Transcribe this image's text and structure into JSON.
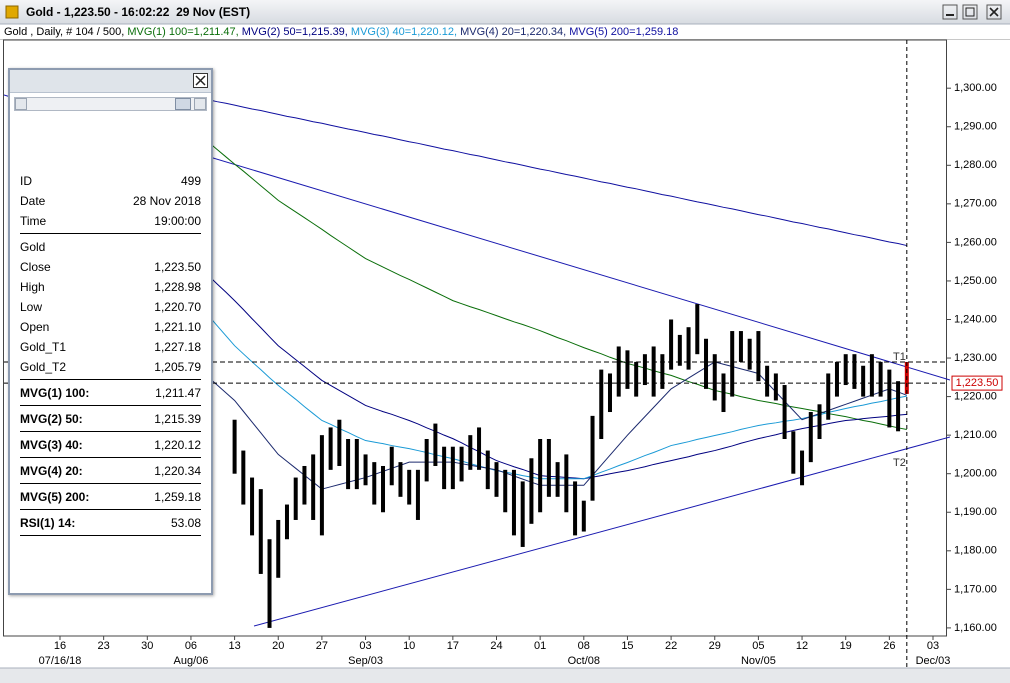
{
  "window": {
    "title": "Gold - 1,223.50 - 16:02:22  29 Nov (EST)"
  },
  "chart_data": {
    "type": "ohlc",
    "header": "Gold , Daily, # 104 / 500, ",
    "categories": [
      "16",
      null,
      null,
      null,
      null,
      "23",
      null,
      null,
      null,
      null,
      "30",
      null,
      null,
      null,
      null,
      "06",
      null,
      null,
      null,
      null,
      "13",
      null,
      null,
      null,
      null,
      "20",
      null,
      null,
      null,
      null,
      "27",
      null,
      null,
      null,
      null,
      "03",
      null,
      null,
      null,
      null,
      "10",
      null,
      null,
      null,
      null,
      "17",
      null,
      null,
      null,
      null,
      "24",
      null,
      null,
      null,
      null,
      "01",
      null,
      null,
      null,
      null,
      "08",
      null,
      null,
      null,
      null,
      "15",
      null,
      null,
      null,
      null,
      "22",
      null,
      null,
      null,
      null,
      "29",
      null,
      null,
      null,
      null,
      "05",
      null,
      null,
      null,
      null,
      "12",
      null,
      null,
      null,
      null,
      "19",
      null,
      null,
      null,
      null,
      "26",
      null,
      null,
      null,
      null,
      "03"
    ],
    "period_labels": [
      "07/16/18",
      null,
      null,
      null,
      null,
      null,
      null,
      null,
      null,
      null,
      null,
      null,
      null,
      null,
      null,
      "Aug/06",
      null,
      null,
      null,
      null,
      null,
      null,
      null,
      null,
      null,
      null,
      null,
      null,
      null,
      null,
      null,
      null,
      null,
      null,
      null,
      "Sep/03",
      null,
      null,
      null,
      null,
      null,
      null,
      null,
      null,
      null,
      null,
      null,
      null,
      null,
      null,
      null,
      null,
      null,
      null,
      null,
      null,
      null,
      null,
      null,
      null,
      "Oct/08",
      null,
      null,
      null,
      null,
      null,
      null,
      null,
      null,
      null,
      null,
      null,
      null,
      null,
      null,
      null,
      null,
      null,
      null,
      null,
      "Nov/05",
      null,
      null,
      null,
      null,
      null,
      null,
      null,
      null,
      null,
      null,
      null,
      null,
      null,
      null,
      null,
      null,
      null,
      null,
      null,
      "Dec/03"
    ],
    "bars": {
      "color": "#000000",
      "last_bar_color": "#cc0000",
      "high": [
        null,
        null,
        null,
        null,
        null,
        null,
        null,
        null,
        null,
        null,
        null,
        null,
        null,
        null,
        null,
        null,
        null,
        null,
        null,
        null,
        1214,
        1206,
        1199,
        1196,
        1183,
        1188,
        1192,
        1199,
        1202,
        1205,
        1210,
        1212,
        1214,
        1209,
        1209,
        1205,
        1203,
        1202,
        1207,
        1203,
        1201,
        1201,
        1209,
        1213,
        1207,
        1207,
        1207,
        1210,
        1212,
        1206,
        1203,
        1201,
        1201,
        1198,
        1204,
        1209,
        1209,
        1203,
        1205,
        1198,
        1193,
        1215,
        1227,
        1226,
        1233,
        1232,
        1229,
        1231,
        1233,
        1231,
        1240,
        1236,
        1238,
        1244,
        1235,
        1231,
        1226,
        1237,
        1237,
        1235,
        1237,
        1228,
        1226,
        1223,
        1211,
        1206,
        1216,
        1218,
        1226,
        1229,
        1231,
        1231,
        1228,
        1231,
        1229,
        1227,
        1224,
        1228.98,
        null,
        null,
        null
      ],
      "low": [
        null,
        null,
        null,
        null,
        null,
        null,
        null,
        null,
        null,
        null,
        null,
        null,
        null,
        null,
        null,
        null,
        null,
        null,
        null,
        null,
        1200,
        1192,
        1184,
        1174,
        1160,
        1173,
        1183,
        1188,
        1192,
        1188,
        1184,
        1201,
        1202,
        1196,
        1196,
        1197,
        1192,
        1190,
        1197,
        1194,
        1192,
        1188,
        1198,
        1202,
        1196,
        1196,
        1198,
        1201,
        1201,
        1196,
        1194,
        1190,
        1184,
        1181,
        1187,
        1190,
        1194,
        1194,
        1190,
        1184,
        1185,
        1193,
        1209,
        1216,
        1220,
        1222,
        1220,
        1223,
        1220,
        1222,
        1227,
        1228,
        1227,
        1231,
        1222,
        1219,
        1216,
        1220,
        1229,
        1227,
        1224,
        1220,
        1219,
        1209,
        1200,
        1197,
        1203,
        1209,
        1214,
        1220,
        1223,
        1222,
        1220,
        1220,
        1220,
        1212,
        1211,
        1220.7,
        null,
        null,
        null
      ]
    },
    "series": [
      {
        "name": "MVG(1) 100=1,211.47, ",
        "color": "#0a6e0a",
        "values": [
          null,
          null,
          null,
          null,
          null,
          null,
          null,
          null,
          null,
          null,
          null,
          null,
          null,
          null,
          null,
          null,
          null,
          1286.0,
          1284.1,
          1282.2,
          1280.3,
          1278.5,
          1276.6,
          1274.7,
          1272.8,
          1270.9,
          1269.4,
          1267.9,
          1266.4,
          1264.9,
          1263.4,
          1261.8,
          1260.3,
          1258.8,
          1257.3,
          1255.8,
          1254.7,
          1253.6,
          1252.5,
          1251.4,
          1250.4,
          1249.3,
          1248.2,
          1247.1,
          1246.0,
          1244.9,
          1244.1,
          1243.3,
          1242.6,
          1241.8,
          1241.0,
          1240.2,
          1239.4,
          1238.7,
          1237.9,
          1237.1,
          1236.2,
          1235.3,
          1234.5,
          1233.6,
          1232.7,
          1231.9,
          1231.1,
          1230.2,
          1229.4,
          1228.6,
          1228.0,
          1227.4,
          1226.7,
          1226.1,
          1225.5,
          1224.7,
          1223.9,
          1223.2,
          1222.4,
          1221.6,
          1221.1,
          1220.6,
          1220.0,
          1219.5,
          1219.0,
          1218.6,
          1218.2,
          1217.7,
          1217.3,
          1216.9,
          1216.5,
          1216.1,
          1215.6,
          1215.2,
          1214.8,
          1214.3,
          1213.8,
          1213.4,
          1212.9,
          1212.4,
          1211.9,
          1211.47,
          null,
          null,
          null
        ]
      },
      {
        "name": "MVG(2) 50=1,215.39, ",
        "color": "#000080",
        "values": [
          null,
          null,
          null,
          null,
          null,
          null,
          null,
          null,
          null,
          null,
          null,
          null,
          null,
          null,
          null,
          null,
          null,
          1251.4,
          1249.2,
          1247.1,
          1244.9,
          1242.6,
          1240.2,
          1237.9,
          1235.5,
          1233.2,
          1231.4,
          1229.6,
          1227.8,
          1226.0,
          1224.2,
          1222.9,
          1221.6,
          1220.3,
          1219.0,
          1217.7,
          1216.9,
          1216.1,
          1215.4,
          1214.6,
          1213.8,
          1212.9,
          1211.9,
          1211.0,
          1210.0,
          1209.1,
          1208.0,
          1206.8,
          1205.7,
          1204.5,
          1203.4,
          1202.6,
          1201.8,
          1201.1,
          1200.3,
          1199.5,
          1199.3,
          1199.2,
          1199.0,
          1198.9,
          1198.7,
          1199.1,
          1199.5,
          1200.0,
          1200.4,
          1200.8,
          1201.3,
          1201.8,
          1202.4,
          1202.9,
          1203.4,
          1203.9,
          1204.4,
          1205.0,
          1205.5,
          1206.0,
          1206.6,
          1207.2,
          1207.9,
          1208.5,
          1209.1,
          1209.6,
          1210.1,
          1210.7,
          1211.2,
          1211.7,
          1212.1,
          1212.5,
          1213.0,
          1213.4,
          1213.8,
          1214.0,
          1214.3,
          1214.5,
          1214.7,
          1214.9,
          1215.2,
          1215.39,
          null,
          null,
          null
        ]
      },
      {
        "name": "MVG(3) 40=1,220.12, ",
        "color": "#1a9ad6",
        "values": [
          null,
          null,
          null,
          null,
          null,
          null,
          null,
          null,
          null,
          null,
          null,
          null,
          null,
          null,
          null,
          null,
          null,
          1241.0,
          1238.4,
          1235.8,
          1233.2,
          1231.1,
          1229.0,
          1227.0,
          1224.9,
          1222.9,
          1221.1,
          1219.3,
          1217.4,
          1215.6,
          1213.8,
          1212.8,
          1211.7,
          1210.7,
          1209.6,
          1208.6,
          1208.2,
          1207.8,
          1207.3,
          1206.9,
          1206.5,
          1206.0,
          1205.5,
          1204.9,
          1204.4,
          1203.9,
          1203.3,
          1202.6,
          1202.0,
          1201.4,
          1200.8,
          1200.4,
          1200.0,
          1199.5,
          1199.1,
          1198.7,
          1198.7,
          1198.7,
          1198.7,
          1198.7,
          1198.7,
          1199.5,
          1200.4,
          1201.2,
          1202.1,
          1202.9,
          1203.8,
          1204.7,
          1205.5,
          1206.4,
          1207.3,
          1207.8,
          1208.3,
          1208.9,
          1209.4,
          1209.9,
          1210.4,
          1210.9,
          1211.5,
          1212.0,
          1212.5,
          1212.9,
          1213.2,
          1213.6,
          1213.9,
          1214.3,
          1214.8,
          1215.3,
          1215.9,
          1216.4,
          1216.9,
          1217.4,
          1217.8,
          1218.3,
          1218.7,
          1219.2,
          1219.7,
          1220.12,
          null,
          null,
          null
        ]
      },
      {
        "name": "MVG(4) 20=1,220.34, ",
        "color": "#1c2a6e",
        "values": [
          null,
          null,
          null,
          null,
          null,
          null,
          null,
          null,
          null,
          null,
          null,
          null,
          null,
          null,
          null,
          null,
          null,
          1225,
          1223,
          1221,
          1219,
          1216.2,
          1213.4,
          1210.6,
          1207.8,
          1205,
          1203.2,
          1201.4,
          1199.6,
          1197.8,
          1196,
          1196.6,
          1197.2,
          1197.8,
          1198.4,
          1199,
          1199.8,
          1200.6,
          1201.4,
          1202.2,
          1203,
          1203,
          1203,
          1203,
          1203,
          1203,
          1202.6,
          1202.2,
          1201.8,
          1201.4,
          1201,
          1200.2,
          1199.4,
          1198.6,
          1197.8,
          1197,
          1197,
          1197,
          1197,
          1197,
          1197,
          1199.6,
          1202.2,
          1204.8,
          1207.4,
          1210,
          1212.4,
          1214.8,
          1217.2,
          1219.6,
          1222,
          1223.4,
          1224.8,
          1226.2,
          1227.6,
          1229,
          1228.4,
          1227.8,
          1227.2,
          1226.6,
          1226,
          1223.6,
          1221.2,
          1218.8,
          1216.4,
          1214,
          1214.8,
          1215.6,
          1216.4,
          1217.2,
          1218,
          1218.8,
          1219.6,
          1220.4,
          1221.2,
          1222,
          1221.2,
          1220.34,
          null,
          null,
          null
        ]
      },
      {
        "name": "MVG(5) 200=1,259.18",
        "color": "#1010a0",
        "values": [
          null,
          null,
          null,
          null,
          null,
          null,
          null,
          null,
          null,
          null,
          null,
          null,
          null,
          null,
          null,
          null,
          null,
          1297.0,
          1296.5,
          1296.1,
          1295.6,
          1295.1,
          1294.6,
          1294.2,
          1293.7,
          1293.2,
          1292.7,
          1292.3,
          1291.8,
          1291.3,
          1290.9,
          1290.4,
          1289.9,
          1289.4,
          1289.0,
          1288.5,
          1288.0,
          1287.6,
          1287.1,
          1286.6,
          1286.1,
          1285.7,
          1285.2,
          1284.7,
          1284.2,
          1283.8,
          1283.3,
          1282.8,
          1282.4,
          1281.9,
          1281.4,
          1280.9,
          1280.5,
          1280.0,
          1279.5,
          1279.0,
          1278.6,
          1278.1,
          1277.6,
          1277.2,
          1276.7,
          1276.2,
          1275.7,
          1275.3,
          1274.8,
          1274.3,
          1273.9,
          1273.4,
          1272.9,
          1272.4,
          1272.0,
          1271.5,
          1271.0,
          1270.5,
          1270.1,
          1269.6,
          1269.1,
          1268.7,
          1268.2,
          1267.7,
          1267.2,
          1266.8,
          1266.3,
          1265.8,
          1265.3,
          1264.9,
          1264.4,
          1263.9,
          1263.5,
          1263.0,
          1262.5,
          1262.0,
          1261.6,
          1261.1,
          1260.6,
          1260.1,
          1259.7,
          1259.18,
          null,
          null,
          null
        ]
      }
    ],
    "ylim": [
      1157.9,
      1312.5
    ],
    "yticks": [
      {
        "value": 1160,
        "label": "1,160.00"
      },
      {
        "value": 1170,
        "label": "1,170.00"
      },
      {
        "value": 1180,
        "label": "1,180.00"
      },
      {
        "value": 1190,
        "label": "1,190.00"
      },
      {
        "value": 1200,
        "label": "1,200.00"
      },
      {
        "value": 1210,
        "label": "1,210.00"
      },
      {
        "value": 1220,
        "label": "1,220.00"
      },
      {
        "value": 1230,
        "label": "1,230.00"
      },
      {
        "value": 1240,
        "label": "1,240.00"
      },
      {
        "value": 1250,
        "label": "1,250.00"
      },
      {
        "value": 1260,
        "label": "1,260.00"
      },
      {
        "value": 1270,
        "label": "1,270.00"
      },
      {
        "value": 1280,
        "label": "1,280.00"
      },
      {
        "value": 1290,
        "label": "1,290.00"
      },
      {
        "value": 1300,
        "label": "1,300.00"
      }
    ],
    "grid": false,
    "hlines": [
      {
        "value": 1228.98
      },
      {
        "value": 1223.5,
        "label": "1,223.50"
      }
    ],
    "annotations": [
      "T1",
      "T2"
    ]
  },
  "data_window": {
    "sections": [
      {
        "rows": [
          [
            "ID",
            "499"
          ],
          [
            "Date",
            "28 Nov 2018"
          ],
          [
            "Time",
            "19:00:00"
          ]
        ]
      },
      {
        "rows": [
          [
            "Gold"
          ],
          [
            "Close",
            "1,223.50"
          ],
          [
            "High",
            "1,228.98"
          ],
          [
            "Low",
            "1,220.70"
          ],
          [
            "Open",
            "1,221.10"
          ],
          [
            "Gold_T1",
            "1,227.18"
          ],
          [
            "Gold_T2",
            "1,205.79"
          ]
        ]
      },
      {
        "emphasis": true,
        "rows": [
          [
            "MVG(1) 100:",
            "1,211.47"
          ]
        ]
      },
      {
        "emphasis": true,
        "rows": [
          [
            "MVG(2) 50:",
            "1,215.39"
          ]
        ]
      },
      {
        "emphasis": true,
        "rows": [
          [
            "MVG(3) 40:",
            "1,220.12"
          ]
        ]
      },
      {
        "emphasis": true,
        "rows": [
          [
            "MVG(4) 20:",
            "1,220.34"
          ]
        ]
      },
      {
        "emphasis": true,
        "rows": [
          [
            "MVG(5) 200:",
            "1,259.18"
          ]
        ]
      },
      {
        "emphasis": true,
        "rows": [
          [
            "RSI(1) 14:",
            "53.08"
          ]
        ]
      }
    ]
  }
}
